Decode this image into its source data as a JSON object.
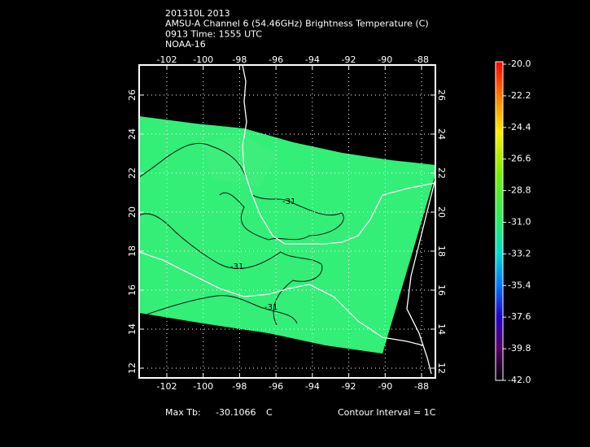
{
  "header": {
    "lines": [
      "201310L 2013",
      "AMSU-A Channel 6 (54.46GHz) Brightness Temperature (C)",
      "0913 Time: 1555 UTC",
      "NOAA-16"
    ]
  },
  "map": {
    "xlim": [
      -103.52,
      -87.24
    ],
    "ylim": [
      11.5,
      27.54
    ],
    "xticks": [
      -102,
      -100,
      -98,
      -96,
      -94,
      -92,
      -90,
      -88
    ],
    "yticks": [
      12,
      14,
      16,
      18,
      20,
      22,
      24,
      26
    ],
    "grid": true,
    "contour_labels": [
      "-31",
      "-31",
      "-31"
    ]
  },
  "colorbar": {
    "lim": [
      -42,
      -20
    ],
    "ticks": [
      {
        "value": -20,
        "label": "-20.0"
      },
      {
        "value": -22.2,
        "label": "-22.2"
      },
      {
        "value": -24.4,
        "label": "-24.4"
      },
      {
        "value": -26.6,
        "label": "-26.6"
      },
      {
        "value": -28.8,
        "label": "-28.8"
      },
      {
        "value": -31,
        "label": "-31.0"
      },
      {
        "value": -33.2,
        "label": "-33.2"
      },
      {
        "value": -35.4,
        "label": "-35.4"
      },
      {
        "value": -37.6,
        "label": "-37.6"
      },
      {
        "value": -39.8,
        "label": "-39.8"
      },
      {
        "value": -42,
        "label": "-42.0"
      }
    ]
  },
  "footer": {
    "max_label": "Max Tb:",
    "max_value": -30.1066,
    "max_unit": "C",
    "contour_interval": "Contour Interval = 1C"
  }
}
